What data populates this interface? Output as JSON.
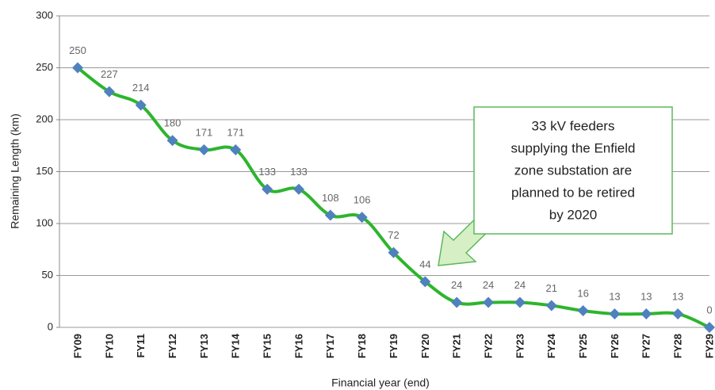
{
  "chart_data": {
    "type": "line",
    "categories": [
      "FY09",
      "FY10",
      "FY11",
      "FY12",
      "FY13",
      "FY14",
      "FY15",
      "FY16",
      "FY17",
      "FY18",
      "FY19",
      "FY20",
      "FY21",
      "FY22",
      "FY23",
      "FY24",
      "FY25",
      "FY26",
      "FY27",
      "FY28",
      "FY29"
    ],
    "series": [
      {
        "name": "Remaining Length",
        "color": "#2db52d",
        "marker_color": "#4f81bd",
        "values": [
          250,
          227,
          214,
          180,
          171,
          171,
          133,
          133,
          108,
          106,
          72,
          44,
          24,
          24,
          24,
          21,
          16,
          13,
          13,
          13,
          0
        ]
      }
    ],
    "ylim": [
      0,
      300
    ],
    "yticks": [
      0,
      50,
      100,
      150,
      200,
      250,
      300
    ],
    "grid": true,
    "x_label": "Financial year (end)",
    "y_label": "Remaining Length (km)",
    "annotation": {
      "lines": [
        "33 kV feeders",
        "supplying the Enfield",
        "zone substation are",
        "planned to be retired",
        "by 2020"
      ]
    }
  }
}
